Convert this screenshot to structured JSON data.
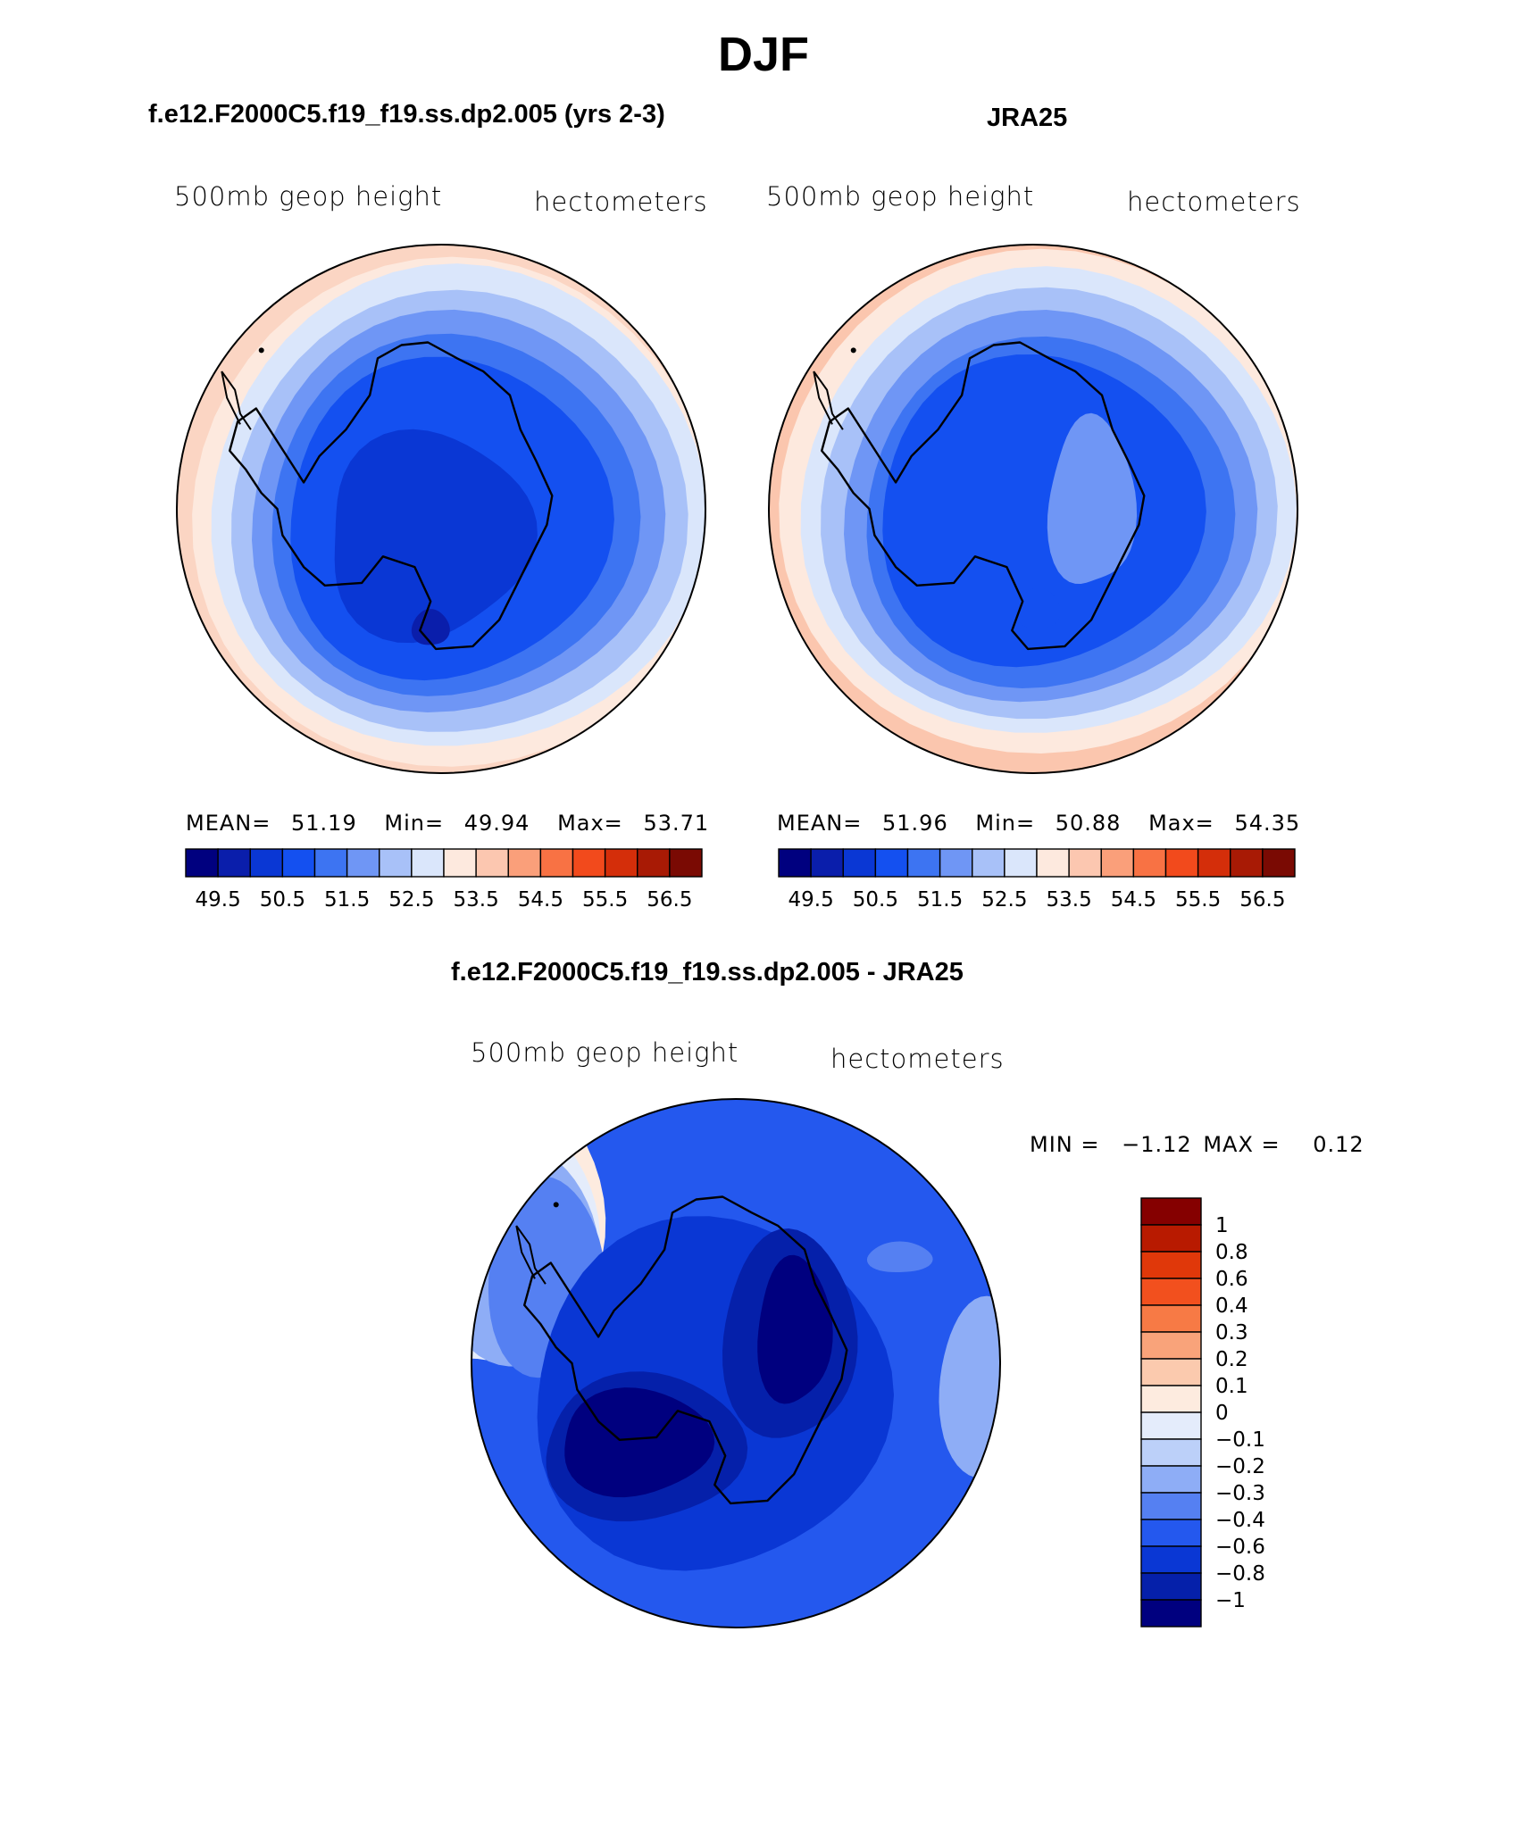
{
  "figure": {
    "title": "DJF",
    "panel_left_title": "f.e12.F2000C5.f19_f19.ss.dp2.005 (yrs 2-3)",
    "panel_right_title": "JRA25",
    "panel_diff_title": "f.e12.F2000C5.f19_f19.ss.dp2.005 - JRA25"
  },
  "labels": {
    "variable": "500mb geop height",
    "units": "hectometers"
  },
  "stats": {
    "left": {
      "mean_label": "MEAN=",
      "mean": "51.19",
      "min_label": "Min=",
      "min": "49.94",
      "max_label": "Max=",
      "max": "53.71"
    },
    "right": {
      "mean_label": "MEAN=",
      "mean": "51.96",
      "min_label": "Min=",
      "min": "50.88",
      "max_label": "Max=",
      "max": "54.35"
    },
    "diff": {
      "min_label": "MIN =",
      "min": "−1.12",
      "max_label": "MAX =",
      "max": "0.12"
    }
  },
  "chart_data": [
    {
      "type": "heatmap",
      "projection": "south-polar-stereographic",
      "title": "f.e12.F2000C5.f19_f19.ss.dp2.005 (yrs 2-3)",
      "variable": "500mb geop height",
      "units": "hectometers",
      "mean": 51.19,
      "min": 49.94,
      "max": 53.71,
      "contour_levels": [
        49.5,
        50,
        50.5,
        51,
        51.5,
        52,
        52.5,
        53,
        53.5,
        54,
        54.5,
        55,
        55.5,
        56,
        56.5
      ],
      "colorbar_tick_labels": [
        "49.5",
        "50.5",
        "51.5",
        "52.5",
        "53.5",
        "54.5",
        "55.5",
        "56.5"
      ],
      "colors": [
        "#00007f",
        "#0a1eab",
        "#0a37d4",
        "#1450f0",
        "#3d74f2",
        "#6f96f5",
        "#a8c1f8",
        "#dae6fb",
        "#fde9de",
        "#fcc7b0",
        "#fa9f7a",
        "#f87244",
        "#f24a1c",
        "#d42e0a",
        "#a81a05",
        "#7a0a03"
      ]
    },
    {
      "type": "heatmap",
      "projection": "south-polar-stereographic",
      "title": "JRA25",
      "variable": "500mb geop height",
      "units": "hectometers",
      "mean": 51.96,
      "min": 50.88,
      "max": 54.35,
      "contour_levels": [
        49.5,
        50,
        50.5,
        51,
        51.5,
        52,
        52.5,
        53,
        53.5,
        54,
        54.5,
        55,
        55.5,
        56,
        56.5
      ],
      "colorbar_tick_labels": [
        "49.5",
        "50.5",
        "51.5",
        "52.5",
        "53.5",
        "54.5",
        "55.5",
        "56.5"
      ],
      "colors": [
        "#00007f",
        "#0a1eab",
        "#0a37d4",
        "#1450f0",
        "#3d74f2",
        "#6f96f5",
        "#a8c1f8",
        "#dae6fb",
        "#fde9de",
        "#fcc7b0",
        "#fa9f7a",
        "#f87244",
        "#f24a1c",
        "#d42e0a",
        "#a81a05",
        "#7a0a03"
      ]
    },
    {
      "type": "heatmap",
      "projection": "south-polar-stereographic",
      "title": "f.e12.F2000C5.f19_f19.ss.dp2.005 - JRA25",
      "variable": "500mb geop height",
      "units": "hectometers",
      "min": -1.12,
      "max": 0.12,
      "contour_levels": [
        -1,
        -0.8,
        -0.6,
        -0.4,
        -0.3,
        -0.2,
        -0.1,
        0,
        0.1,
        0.2,
        0.3,
        0.4,
        0.6,
        0.8,
        1
      ],
      "colorbar_tick_labels": [
        "1",
        "0.8",
        "0.6",
        "0.4",
        "0.3",
        "0.2",
        "0.1",
        "0",
        "−0.1",
        "−0.2",
        "−0.3",
        "−0.4",
        "−0.6",
        "−0.8",
        "−1"
      ],
      "colors_top_to_bottom": [
        "#850000",
        "#b81a00",
        "#e0380a",
        "#f2501e",
        "#f77a45",
        "#f9a37a",
        "#fbcaae",
        "#fdebdf",
        "#e4ecfb",
        "#bcd0f9",
        "#8eadf6",
        "#5580f2",
        "#2458ee",
        "#0a37d4",
        "#0520aa",
        "#00007f"
      ]
    }
  ]
}
